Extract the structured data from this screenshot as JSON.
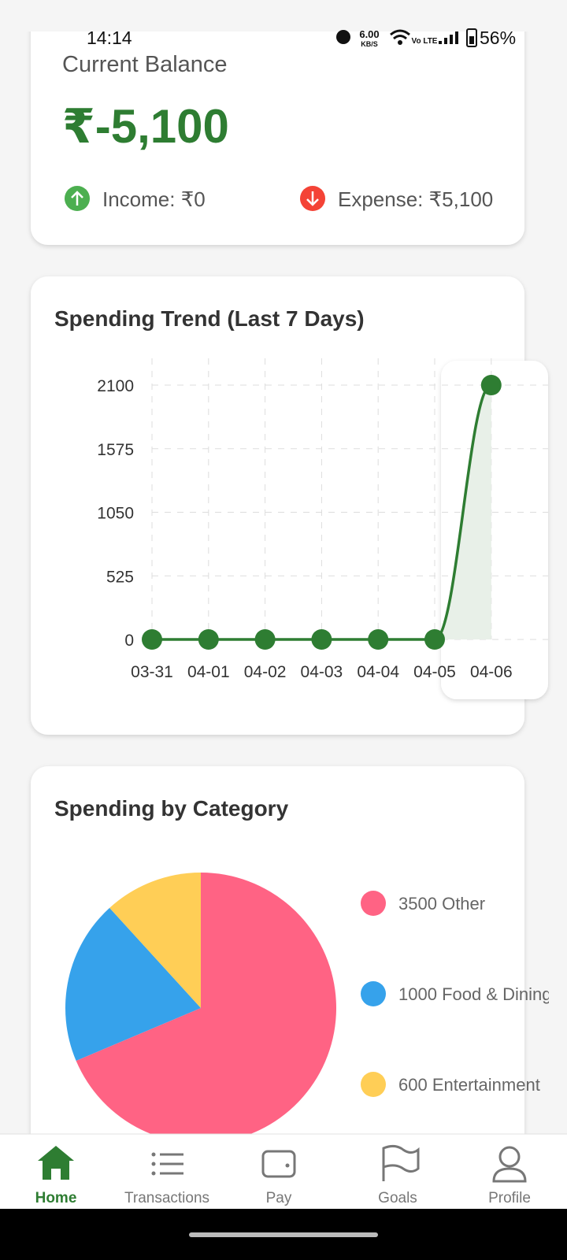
{
  "status_bar": {
    "time": "14:14",
    "net_speed": "6.00",
    "net_speed_unit": "KB/S",
    "network": "Vo LTE",
    "battery": "56%"
  },
  "balance_card": {
    "label": "Current Balance",
    "amount": "₹-5,100",
    "income": "Income: ₹0",
    "expense": "Expense: ₹5,100"
  },
  "trend_card": {
    "title": "Spending Trend (Last 7 Days)"
  },
  "category_card": {
    "title": "Spending by Category"
  },
  "chart_data": [
    {
      "type": "line",
      "categories": [
        "03-31",
        "04-01",
        "04-02",
        "04-03",
        "04-04",
        "04-05",
        "04-06"
      ],
      "values": [
        0,
        0,
        0,
        0,
        0,
        0,
        2100
      ],
      "ylim": [
        0,
        2100
      ],
      "yticks": [
        0,
        525,
        1050,
        1575,
        2100
      ],
      "color": "#2e7d32",
      "area_color": "#e8f0e8",
      "grid": true
    },
    {
      "type": "pie",
      "categories": [
        "Other",
        "Food & Dining",
        "Entertainment"
      ],
      "values": [
        3500,
        1000,
        600
      ],
      "colors": [
        "#ff6384",
        "#36a2eb",
        "#ffce56"
      ],
      "legend": "right"
    }
  ],
  "nav": {
    "items": [
      "Home",
      "Transactions",
      "Pay",
      "Goals",
      "Profile"
    ]
  }
}
